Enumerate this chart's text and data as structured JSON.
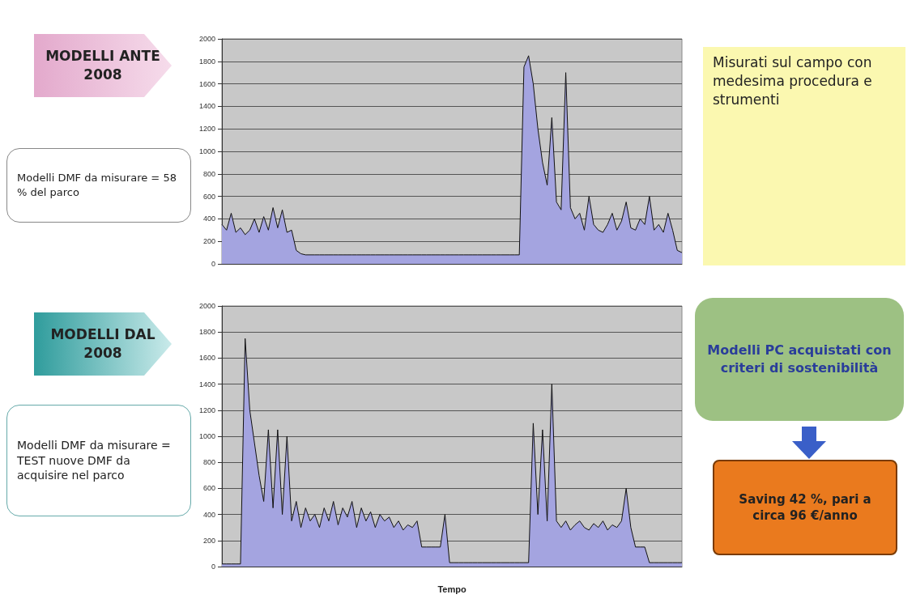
{
  "chart_data": [
    {
      "type": "area",
      "categories": [
        null,
        null,
        null,
        null,
        null,
        null,
        null,
        null,
        null,
        null,
        null,
        null,
        null,
        null,
        null,
        null,
        null,
        null,
        null,
        null,
        null,
        null,
        null,
        null,
        null,
        null,
        null,
        null,
        null,
        null,
        null,
        null,
        null,
        null,
        null,
        null,
        null,
        null,
        null,
        null,
        null,
        null,
        null,
        null,
        null,
        null,
        null,
        null,
        null,
        null,
        null,
        null,
        null,
        null,
        null,
        null,
        null,
        null,
        null,
        null,
        null,
        null,
        null,
        null,
        null,
        null,
        null,
        null,
        null,
        null,
        null,
        null,
        null,
        null,
        null,
        null,
        null,
        null,
        null,
        null,
        null,
        null,
        null,
        null,
        null,
        null,
        null,
        null,
        null,
        null,
        null,
        null,
        null,
        null,
        null,
        null,
        null,
        null,
        null,
        null
      ],
      "series": [
        {
          "color": "#a4a4e0",
          "values": [
            350,
            300,
            450,
            280,
            320,
            260,
            300,
            400,
            280,
            420,
            300,
            500,
            320,
            480,
            280,
            300,
            120,
            90,
            80,
            80,
            80,
            80,
            80,
            80,
            80,
            80,
            80,
            80,
            80,
            80,
            80,
            80,
            80,
            80,
            80,
            80,
            80,
            80,
            80,
            80,
            80,
            80,
            80,
            80,
            80,
            80,
            80,
            80,
            80,
            80,
            80,
            80,
            80,
            80,
            80,
            80,
            80,
            80,
            80,
            80,
            80,
            80,
            80,
            80,
            80,
            1750,
            1850,
            1600,
            1200,
            900,
            700,
            1300,
            550,
            480,
            1700,
            500,
            400,
            450,
            300,
            600,
            350,
            300,
            280,
            350,
            450,
            300,
            380,
            550,
            320,
            300,
            400,
            350,
            600,
            300,
            350,
            280,
            450,
            300,
            120,
            100
          ]
        }
      ],
      "ylim": [
        0,
        2000
      ],
      "yticks": [
        0,
        200,
        400,
        600,
        800,
        1000,
        1200,
        1400,
        1600,
        1800,
        2000
      ],
      "grid": "y",
      "tick_labels": "y",
      "annotations": [
        "MODELLI ANTE 2008",
        "Modelli DMF da misurare = 58 % del parco",
        "Misurati sul campo con medesima procedura e strumenti"
      ]
    },
    {
      "type": "area",
      "xlabel": "Tempo",
      "categories": [
        null,
        null,
        null,
        null,
        null,
        null,
        null,
        null,
        null,
        null,
        null,
        null,
        null,
        null,
        null,
        null,
        null,
        null,
        null,
        null,
        null,
        null,
        null,
        null,
        null,
        null,
        null,
        null,
        null,
        null,
        null,
        null,
        null,
        null,
        null,
        null,
        null,
        null,
        null,
        null,
        null,
        null,
        null,
        null,
        null,
        null,
        null,
        null,
        null,
        null,
        null,
        null,
        null,
        null,
        null,
        null,
        null,
        null,
        null,
        null,
        null,
        null,
        null,
        null,
        null,
        null,
        null,
        null,
        null,
        null,
        null,
        null,
        null,
        null,
        null,
        null,
        null,
        null,
        null,
        null,
        null,
        null,
        null,
        null,
        null,
        null,
        null,
        null,
        null,
        null,
        null,
        null,
        null,
        null,
        null,
        null,
        null,
        null,
        null,
        null
      ],
      "series": [
        {
          "color": "#a4a4e0",
          "values": [
            20,
            20,
            20,
            20,
            20,
            1750,
            1200,
            950,
            700,
            500,
            1050,
            450,
            1050,
            400,
            1000,
            350,
            500,
            300,
            450,
            350,
            400,
            300,
            450,
            350,
            500,
            320,
            450,
            380,
            500,
            300,
            450,
            350,
            420,
            300,
            400,
            350,
            380,
            300,
            350,
            280,
            320,
            300,
            350,
            150,
            150,
            150,
            150,
            150,
            400,
            30,
            30,
            30,
            30,
            30,
            30,
            30,
            30,
            30,
            30,
            30,
            30,
            30,
            30,
            30,
            30,
            30,
            30,
            1100,
            400,
            1050,
            350,
            1400,
            350,
            300,
            350,
            280,
            320,
            350,
            300,
            280,
            330,
            300,
            350,
            280,
            320,
            300,
            350,
            600,
            300,
            150,
            150,
            150,
            30,
            30,
            30,
            30,
            30,
            30,
            30,
            30
          ]
        }
      ],
      "ylim": [
        0,
        2000
      ],
      "yticks": [
        0,
        200,
        400,
        600,
        800,
        1000,
        1200,
        1400,
        1600,
        1800,
        2000
      ],
      "grid": "y",
      "tick_labels": "y",
      "annotations": [
        "MODELLI DAL 2008",
        "Modelli DMF da misurare = TEST nuove DMF da acquisire nel parco",
        "Modelli PC acquistati con criteri di sostenibilità",
        "Saving 42 %, pari a circa 96 €/anno"
      ]
    }
  ]
}
